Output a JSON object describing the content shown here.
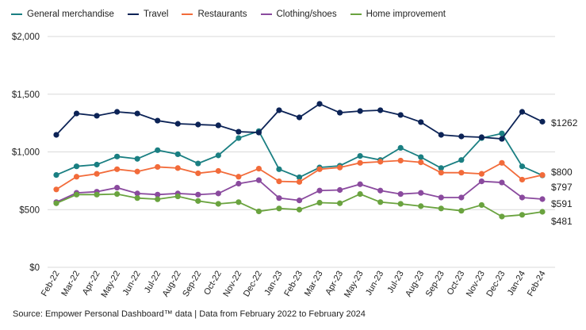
{
  "chart_data": {
    "type": "line",
    "title": "",
    "xlabel": "",
    "ylabel": "",
    "ylim": [
      0,
      2000
    ],
    "yticks": [
      0,
      500,
      1000,
      1500,
      2000
    ],
    "ytick_labels": [
      "$0",
      "$500",
      "$1,000",
      "$1,500",
      "$2,000"
    ],
    "grid": true,
    "legend": "top-left",
    "categories": [
      "Feb-22",
      "Mar-22",
      "Apr-22",
      "May-22",
      "Jun-22",
      "Jul-22",
      "Aug-22",
      "Sep-22",
      "Oct-22",
      "Nov-22",
      "Dec-22",
      "Jan-23",
      "Feb-23",
      "Mar-23",
      "Apr-23",
      "May-23",
      "Jun-23",
      "Jul-23",
      "Aug-23",
      "Sep-23",
      "Oct-23",
      "Nov-23",
      "Dec-23",
      "Jan-24",
      "Feb-24"
    ],
    "series": [
      {
        "name": "General merchandise",
        "color": "#1a7f82",
        "end_label": "$797",
        "values": [
          800,
          875,
          890,
          960,
          940,
          1015,
          980,
          900,
          970,
          1120,
          1180,
          850,
          780,
          865,
          880,
          965,
          930,
          1035,
          955,
          860,
          930,
          1120,
          1160,
          875,
          797
        ]
      },
      {
        "name": "Travel",
        "color": "#0c2356",
        "end_label": "$1262",
        "values": [
          1148,
          1333,
          1313,
          1347,
          1333,
          1271,
          1244,
          1237,
          1230,
          1175,
          1168,
          1361,
          1299,
          1416,
          1340,
          1354,
          1361,
          1320,
          1258,
          1148,
          1134,
          1127,
          1113,
          1347,
          1262
        ]
      },
      {
        "name": "Restaurants",
        "color": "#f26b3a",
        "end_label": "$800",
        "values": [
          675,
          785,
          810,
          850,
          830,
          870,
          860,
          815,
          835,
          785,
          855,
          745,
          740,
          850,
          865,
          905,
          915,
          925,
          910,
          820,
          820,
          810,
          905,
          760,
          800
        ]
      },
      {
        "name": "Clothing/shoes",
        "color": "#8a4a9e",
        "end_label": "$591",
        "values": [
          565,
          645,
          655,
          690,
          640,
          630,
          640,
          630,
          640,
          725,
          755,
          600,
          580,
          665,
          670,
          720,
          665,
          635,
          645,
          605,
          605,
          745,
          735,
          605,
          591
        ]
      },
      {
        "name": "Home improvement",
        "color": "#6aa33f",
        "end_label": "$481",
        "values": [
          555,
          630,
          630,
          635,
          600,
          590,
          615,
          575,
          550,
          565,
          485,
          510,
          500,
          560,
          555,
          635,
          565,
          550,
          530,
          510,
          490,
          540,
          440,
          455,
          481
        ]
      }
    ]
  },
  "source": "Source: Empower Personal Dashboard™ data  |  Data from February 2022 to February 2024"
}
